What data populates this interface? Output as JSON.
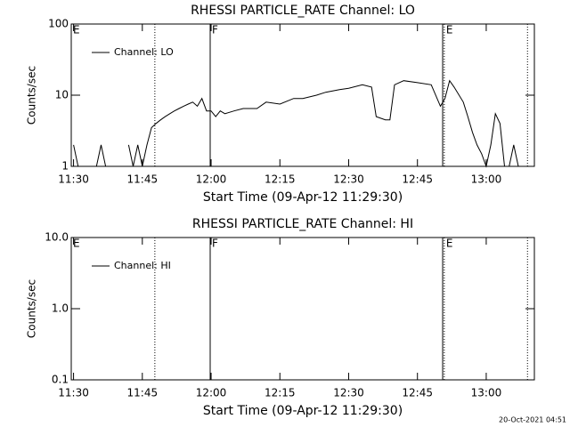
{
  "chart_data": [
    {
      "type": "line",
      "title": "RHESSI PARTICLE_RATE Channel: LO",
      "xlabel": "Start Time (09-Apr-12 11:29:30)",
      "ylabel": "Counts/sec",
      "log_y": true,
      "xlim": [
        "11:29:30",
        "13:10:30"
      ],
      "xticks": [
        "11:30",
        "11:45",
        "12:00",
        "12:15",
        "12:30",
        "12:45",
        "13:00"
      ],
      "ylim": [
        1,
        100
      ],
      "yticks": [
        1,
        10,
        100
      ],
      "legend": "upper left",
      "markers": [
        {
          "x": "11:29:30",
          "label": "E"
        },
        {
          "x": "11:47:44",
          "style": "dotted"
        },
        {
          "x": "11:59:48",
          "label": "F",
          "style": "solid"
        },
        {
          "x": "12:50:30",
          "style": "solid"
        },
        {
          "x": "12:50:51",
          "label": "E",
          "style": "dotted"
        },
        {
          "x": "13:09:00",
          "style": "dotted"
        }
      ],
      "series": [
        {
          "name": "Channel: LO",
          "color": "#000000",
          "x": [
            "11:30",
            "11:31",
            "11:32",
            "11:33",
            "11:34",
            "11:35",
            "11:36",
            "11:37",
            "11:38",
            "11:39",
            "11:40",
            "11:41",
            "11:42",
            "11:43",
            "11:44",
            "11:45",
            "11:46",
            "11:47",
            "11:48",
            "11:49",
            "11:50",
            "11:51",
            "11:52",
            "11:53",
            "11:54",
            "11:55",
            "11:56",
            "11:57",
            "11:58",
            "11:59",
            "12:00",
            "12:01",
            "12:02",
            "12:03",
            "12:05",
            "12:07",
            "12:10",
            "12:12",
            "12:15",
            "12:18",
            "12:20",
            "12:23",
            "12:25",
            "12:28",
            "12:30",
            "12:33",
            "12:35",
            "12:36",
            "12:38",
            "12:39",
            "12:40",
            "12:42",
            "12:45",
            "12:48",
            "12:50",
            "12:51",
            "12:52",
            "12:53",
            "12:55",
            "12:56",
            "12:57",
            "12:58",
            "12:59",
            "13:00",
            "13:01",
            "13:02",
            "13:03",
            "13:04",
            "13:05",
            "13:06",
            "13:07"
          ],
          "values": [
            2,
            1,
            null,
            null,
            null,
            1,
            2,
            1,
            null,
            null,
            null,
            null,
            2,
            1,
            2,
            1,
            2,
            3.5,
            4,
            4.5,
            5,
            5.5,
            6,
            6.5,
            7,
            7.5,
            8,
            7,
            9,
            6,
            6,
            5,
            6,
            5.5,
            6,
            6.5,
            6.5,
            8,
            7.5,
            9,
            9,
            10,
            11,
            12,
            12.5,
            14,
            13,
            5,
            4.5,
            4.5,
            14,
            16,
            15,
            14,
            7,
            9,
            16,
            13,
            8,
            5,
            3,
            2,
            1.5,
            1,
            2,
            5.5,
            4,
            1,
            1,
            2,
            1
          ]
        }
      ]
    },
    {
      "type": "line",
      "title": "RHESSI PARTICLE_RATE Channel: HI",
      "xlabel": "Start Time (09-Apr-12 11:29:30)",
      "ylabel": "Counts/sec",
      "log_y": true,
      "xlim": [
        "11:29:30",
        "13:10:30"
      ],
      "xticks": [
        "11:30",
        "11:45",
        "12:00",
        "12:15",
        "12:30",
        "12:45",
        "13:00"
      ],
      "ylim": [
        0.1,
        10
      ],
      "yticks": [
        0.1,
        {
          "value": 1,
          "label": "1.0"
        },
        {
          "value": 10,
          "label": "10.0"
        }
      ],
      "legend": "upper left",
      "markers": [
        {
          "x": "11:29:30",
          "label": "E"
        },
        {
          "x": "11:47:44",
          "style": "dotted"
        },
        {
          "x": "11:59:48",
          "label": "F",
          "style": "solid"
        },
        {
          "x": "12:50:30",
          "style": "solid"
        },
        {
          "x": "12:50:51",
          "label": "E",
          "style": "dotted"
        },
        {
          "x": "13:09:00",
          "style": "dotted"
        }
      ],
      "series": [
        {
          "name": "Channel: HI",
          "color": "#000000",
          "x": [],
          "values": []
        }
      ]
    }
  ],
  "footer": "20-Oct-2021 04:51"
}
